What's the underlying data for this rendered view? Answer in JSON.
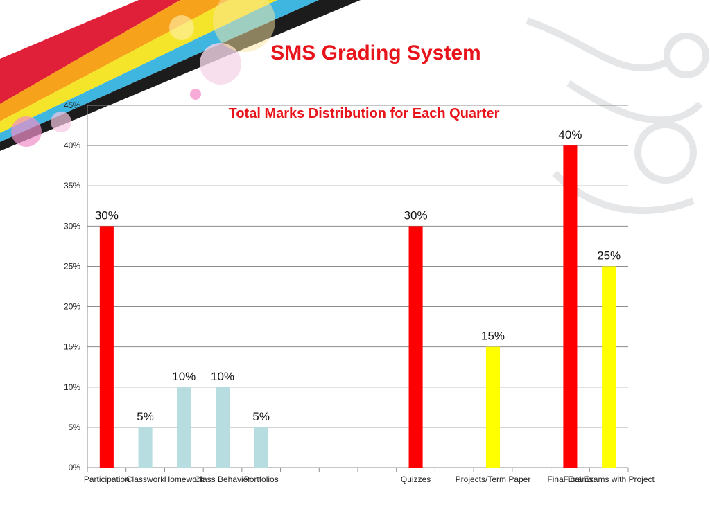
{
  "slide": {
    "title": "SMS Grading System"
  },
  "colors": {
    "red": "#ff0000",
    "yellow": "#ffff00",
    "light_blue": "#b7dde1",
    "accent_title": "#e8141c"
  },
  "chart_data": {
    "type": "bar",
    "title": "Total Marks Distribution for Each Quarter",
    "xlabel": "",
    "ylabel": "",
    "ylim": [
      0,
      45
    ],
    "y_ticks": [
      "0%",
      "5%",
      "10%",
      "15%",
      "20%",
      "25%",
      "30%",
      "35%",
      "40%",
      "45%"
    ],
    "grid": true,
    "categories": [
      "Participation",
      "Classwork",
      "Homework",
      "Class Behavior",
      "Portfolios",
      "",
      "",
      "",
      "Quizzes",
      "",
      "Projects/Term Paper",
      "",
      "Final Exams",
      "Final Exams with Project"
    ],
    "bars": [
      {
        "category": "Participation",
        "value": 30,
        "label": "30%",
        "color": "#ff0000"
      },
      {
        "category": "Classwork",
        "value": 5,
        "label": "5%",
        "color": "#b7dde1"
      },
      {
        "category": "Homework",
        "value": 10,
        "label": "10%",
        "color": "#b7dde1"
      },
      {
        "category": "Class Behavior",
        "value": 10,
        "label": "10%",
        "color": "#b7dde1"
      },
      {
        "category": "Portfolios",
        "value": 5,
        "label": "5%",
        "color": "#b7dde1"
      },
      {
        "category": "Quizzes",
        "value": 30,
        "label": "30%",
        "color": "#ff0000"
      },
      {
        "category": "Projects/Term Paper",
        "value": 15,
        "label": "15%",
        "color": "#ffff00"
      },
      {
        "category": "Final Exams",
        "value": 40,
        "label": "40%",
        "color": "#ff0000"
      },
      {
        "category": "Final Exams with Project",
        "value": 25,
        "label": "25%",
        "color": "#ffff00"
      }
    ]
  }
}
